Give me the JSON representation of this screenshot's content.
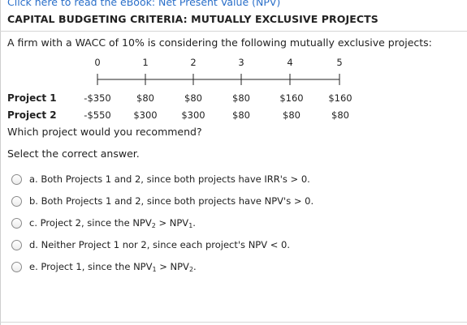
{
  "header": {
    "ebook_link": "Click here to read the eBook: Net Present Value (NPV)",
    "title": "CAPITAL BUDGETING CRITERIA: MUTUALLY EXCLUSIVE PROJECTS"
  },
  "problem": {
    "prompt": "A firm with a WACC of 10% is considering the following mutually exclusive projects:",
    "periods": [
      "0",
      "1",
      "2",
      "3",
      "4",
      "5"
    ],
    "projects": [
      {
        "label": "Project 1",
        "cash_flows": [
          "-$350",
          "$80",
          "$80",
          "$80",
          "$160",
          "$160"
        ]
      },
      {
        "label": "Project 2",
        "cash_flows": [
          "-$550",
          "$300",
          "$300",
          "$80",
          "$80",
          "$80"
        ]
      }
    ],
    "question": "Which project would you recommend?",
    "instruction": "Select the correct answer."
  },
  "options": [
    {
      "text": "a. Both Projects 1 and 2, since both projects have IRR's > 0."
    },
    {
      "text": "b. Both Projects 1 and 2, since both projects have NPV's > 0."
    },
    {
      "prefix": "c. Project 2, since the NPV",
      "sub1": "2",
      "mid": " > NPV",
      "sub2": "1",
      "suffix": "."
    },
    {
      "text": "d. Neither Project 1 nor 2, since each project's NPV < 0."
    },
    {
      "prefix": "e. Project 1, since the NPV",
      "sub1": "1",
      "mid": " > NPV",
      "sub2": "2",
      "suffix": "."
    }
  ],
  "colors": {
    "link": "#2a6fc9",
    "text": "#222222",
    "rule": "#d6d6d6"
  }
}
